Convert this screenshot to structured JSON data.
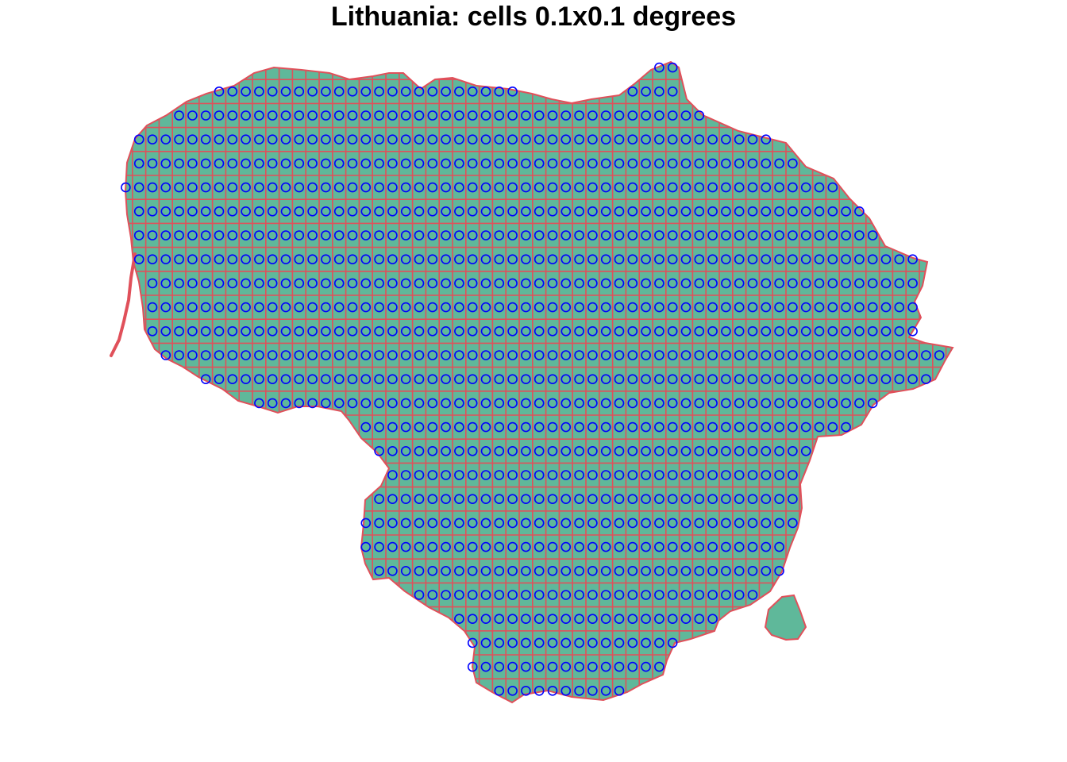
{
  "title": "Lithuania: cells 0.1x0.1 degrees",
  "map": {
    "region": "Lithuania",
    "cell_size_degrees": 0.1,
    "colors": {
      "land_fill": "#5fb89a",
      "border": "#e0505a",
      "grid_lines": "#e0505a",
      "cell_centroids": "#0000ff"
    },
    "centroid_marker": "open-circle"
  }
}
